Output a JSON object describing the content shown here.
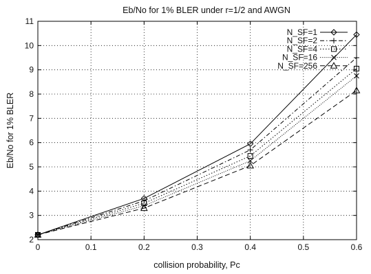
{
  "chart_data": {
    "type": "line",
    "title": "Eb/No for 1% BLER under r=1/2 and AWGN",
    "xlabel": "collision probability, Pc",
    "ylabel": "Eb/No for 1% BLER",
    "xlim": [
      0,
      0.6
    ],
    "ylim": [
      2,
      11
    ],
    "xticks": [
      0,
      0.1,
      0.2,
      0.3,
      0.4,
      0.5,
      0.6
    ],
    "xtick_labels": [
      "0",
      "0.1",
      "0.2",
      "0.3",
      "0.4",
      "0.5",
      "0.6"
    ],
    "yticks": [
      2,
      3,
      4,
      5,
      6,
      7,
      8,
      9,
      10,
      11
    ],
    "ytick_labels": [
      "2",
      "3",
      "4",
      "5",
      "6",
      "7",
      "8",
      "9",
      "10",
      "11"
    ],
    "grid": true,
    "legend_position": "top-right",
    "x": [
      0,
      0.2,
      0.4,
      0.6
    ],
    "series": [
      {
        "name": "N_SF=1",
        "values": [
          2.2,
          3.7,
          5.95,
          10.45
        ],
        "dash": "solid",
        "marker": "diamond"
      },
      {
        "name": "N_SF=2",
        "values": [
          2.2,
          3.6,
          5.7,
          9.5
        ],
        "dash": "dashdot",
        "marker": "plus"
      },
      {
        "name": "N_SF=4",
        "values": [
          2.2,
          3.5,
          5.45,
          9.05
        ],
        "dash": "dotted",
        "marker": "square"
      },
      {
        "name": "N_SF=16",
        "values": [
          2.2,
          3.4,
          5.25,
          8.75
        ],
        "dash": "dotted-fine",
        "marker": "x"
      },
      {
        "name": "N_SF=256",
        "values": [
          2.2,
          3.3,
          5.05,
          8.15
        ],
        "dash": "dashed",
        "marker": "triangle"
      }
    ]
  }
}
